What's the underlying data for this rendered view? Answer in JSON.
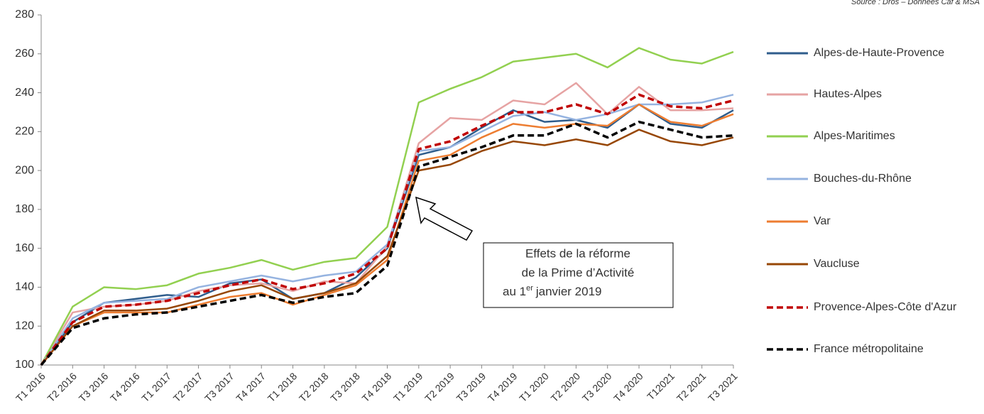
{
  "chart_data": {
    "type": "line",
    "source": "Source : Dros – Données Caf & MSA",
    "categories": [
      "T1 2016",
      "T2 2016",
      "T3 2016",
      "T4 2016",
      "T1 2017",
      "T2 2017",
      "T3 2017",
      "T4 2017",
      "T1 2018",
      "T2 2018",
      "T3 2018",
      "T4 2018",
      "T1 2019",
      "T2 2019",
      "T3 2019",
      "T4 2019",
      "T1 2020",
      "T2 2020",
      "T3 2020",
      "T4 2020",
      "T12021",
      "T2 2021",
      "T3 2021"
    ],
    "series": [
      {
        "name": "Alpes-de-Haute-Provence",
        "color": "#2f5d8c",
        "style": "solid",
        "values": [
          100,
          122,
          132,
          134,
          136,
          135,
          142,
          144,
          134,
          137,
          145,
          160,
          208,
          212,
          222,
          231,
          225,
          226,
          222,
          234,
          224,
          222,
          231
        ]
      },
      {
        "name": "Hautes-Alpes",
        "color": "#e6a3a3",
        "style": "solid",
        "values": [
          100,
          127,
          130,
          131,
          133,
          138,
          141,
          142,
          138,
          143,
          142,
          161,
          214,
          227,
          226,
          236,
          234,
          245,
          229,
          243,
          231,
          231,
          232
        ]
      },
      {
        "name": "Alpes-Maritimes",
        "color": "#92d050",
        "style": "solid",
        "values": [
          100,
          130,
          140,
          139,
          141,
          147,
          150,
          154,
          149,
          153,
          155,
          171,
          235,
          242,
          248,
          256,
          258,
          260,
          253,
          263,
          257,
          255,
          261
        ]
      },
      {
        "name": "Bouches-du-Rhône",
        "color": "#95b3e0",
        "style": "solid",
        "values": [
          100,
          124,
          132,
          133,
          134,
          140,
          143,
          146,
          143,
          146,
          148,
          162,
          210,
          212,
          220,
          228,
          230,
          226,
          229,
          234,
          234,
          235,
          239
        ]
      },
      {
        "name": "Var",
        "color": "#ed7d31",
        "style": "solid",
        "values": [
          100,
          120,
          127,
          127,
          127,
          131,
          135,
          137,
          131,
          136,
          141,
          154,
          205,
          208,
          217,
          224,
          222,
          224,
          223,
          234,
          225,
          223,
          229
        ]
      },
      {
        "name": "Vaucluse",
        "color": "#974706",
        "style": "solid",
        "values": [
          100,
          120,
          128,
          128,
          129,
          133,
          138,
          141,
          134,
          137,
          142,
          156,
          200,
          203,
          210,
          215,
          213,
          216,
          213,
          221,
          215,
          213,
          217
        ]
      },
      {
        "name": "Provence-Alpes-Côte d'Azur",
        "color": "#c00000",
        "style": "dashed",
        "values": [
          100,
          122,
          130,
          131,
          133,
          137,
          141,
          144,
          139,
          142,
          147,
          160,
          211,
          215,
          223,
          230,
          230,
          234,
          229,
          239,
          233,
          232,
          236
        ]
      },
      {
        "name": "France métropolitaine",
        "color": "#000000",
        "style": "dashed",
        "values": [
          100,
          119,
          124,
          126,
          127,
          130,
          133,
          136,
          132,
          135,
          137,
          151,
          202,
          207,
          212,
          218,
          218,
          224,
          217,
          225,
          221,
          217,
          218
        ]
      }
    ],
    "ylim": [
      100,
      280
    ],
    "yticks": [
      100,
      120,
      140,
      160,
      180,
      200,
      220,
      240,
      260,
      280
    ],
    "grid": false,
    "annotation": [
      "Effets de la réforme",
      "de la Prime d’Activité",
      "au 1",
      "er",
      "janvier 2019"
    ]
  }
}
